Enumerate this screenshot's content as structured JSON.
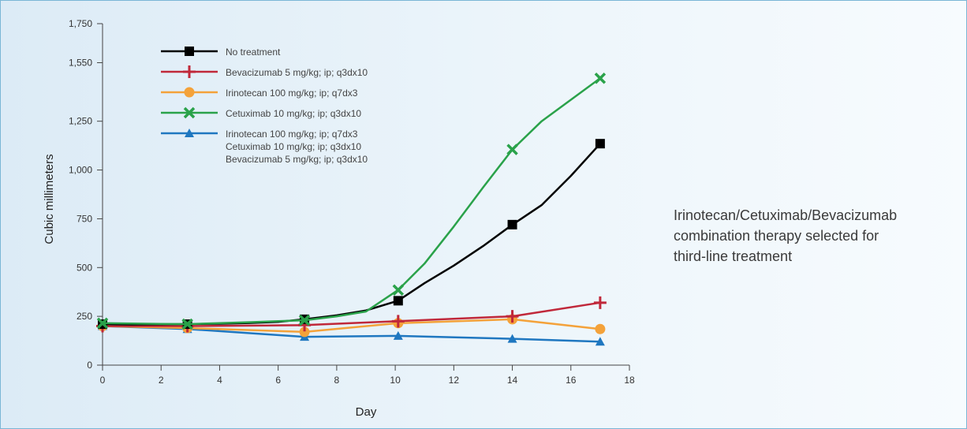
{
  "chart_data": {
    "type": "line",
    "xlabel": "Day",
    "ylabel": "Cubic millimeters",
    "xlim": [
      0,
      18
    ],
    "ylim": [
      0,
      1750
    ],
    "x_ticks": [
      0,
      2,
      4,
      6,
      8,
      10,
      12,
      14,
      16,
      18
    ],
    "y_ticks": [
      0,
      250,
      500,
      750,
      1000,
      1250,
      1550,
      1750
    ],
    "y_tick_labels": [
      "0",
      "250",
      "500",
      "750",
      "1,000",
      "1,250",
      "1,550",
      "1,750"
    ],
    "grid": false,
    "legend_position": "top-left",
    "series": [
      {
        "name": "No treatment",
        "color": "#000000",
        "marker": "square",
        "legend_lines": [
          "No treatment"
        ],
        "x": [
          0,
          2.9,
          6.9,
          10.1,
          14,
          17
        ],
        "y": [
          210,
          210,
          235,
          330,
          720,
          1135
        ],
        "curve_x": [
          0,
          1,
          2,
          2.9,
          4,
          5,
          6,
          6.9,
          8,
          9,
          10.1,
          11,
          12,
          13,
          14,
          15,
          16,
          17
        ],
        "curve_y": [
          210,
          208,
          209,
          210,
          212,
          216,
          222,
          235,
          255,
          280,
          330,
          420,
          510,
          610,
          720,
          820,
          970,
          1135
        ]
      },
      {
        "name": "Bevacizumab 5 mg/kg; ip; q3dx10",
        "color": "#c0283a",
        "marker": "plus",
        "legend_lines": [
          "Bevacizumab 5 mg/kg; ip; q3dx10"
        ],
        "x": [
          0,
          2.9,
          6.9,
          10.1,
          14,
          17
        ],
        "y": [
          200,
          200,
          205,
          225,
          250,
          320
        ]
      },
      {
        "name": "Irinotecan 100 mg/kg; ip; q7dx3",
        "color": "#f4a23a",
        "marker": "circle",
        "legend_lines": [
          "Irinotecan 100 mg/kg; ip; q7dx3"
        ],
        "x": [
          0,
          2.9,
          6.9,
          10.1,
          14,
          17
        ],
        "y": [
          200,
          190,
          170,
          215,
          235,
          185
        ]
      },
      {
        "name": "Cetuximab 10 mg/kg; ip; q3dx10",
        "color": "#2aa24a",
        "marker": "x",
        "legend_lines": [
          "Cetuximab 10  mg/kg; ip; q3dx10"
        ],
        "x": [
          0,
          2.9,
          6.9,
          10.1,
          14,
          17
        ],
        "y": [
          215,
          210,
          230,
          385,
          1105,
          1470
        ],
        "curve_x": [
          0,
          1,
          2,
          2.9,
          4,
          5,
          6,
          6.9,
          8,
          9,
          10.1,
          11,
          12,
          13,
          14,
          15,
          16,
          17
        ],
        "curve_y": [
          215,
          213,
          211,
          210,
          215,
          220,
          225,
          230,
          250,
          275,
          385,
          520,
          710,
          910,
          1105,
          1250,
          1360,
          1470
        ]
      },
      {
        "name": "Irinotecan 100 mg/kg; ip; q7dx3 Cetuximab 10 mg/kg; ip; q3dx10 Bevacizumab 5 mg/kg; ip; q3dx10",
        "color": "#1f77c0",
        "marker": "triangle",
        "legend_lines": [
          "Irinotecan 100 mg/kg; ip; q7dx3",
          "Cetuximab 10 mg/kg; ip; q3dx10",
          "Bevacizumab 5 mg/kg; ip; q3dx10"
        ],
        "x": [
          0,
          2.9,
          6.9,
          10.1,
          14,
          17
        ],
        "y": [
          200,
          185,
          145,
          150,
          135,
          120
        ]
      }
    ]
  },
  "side_note": {
    "lines": [
      "Irinotecan/Cetuximab/Bevacizumab",
      "combination therapy selected for",
      "third-line treatment"
    ]
  }
}
